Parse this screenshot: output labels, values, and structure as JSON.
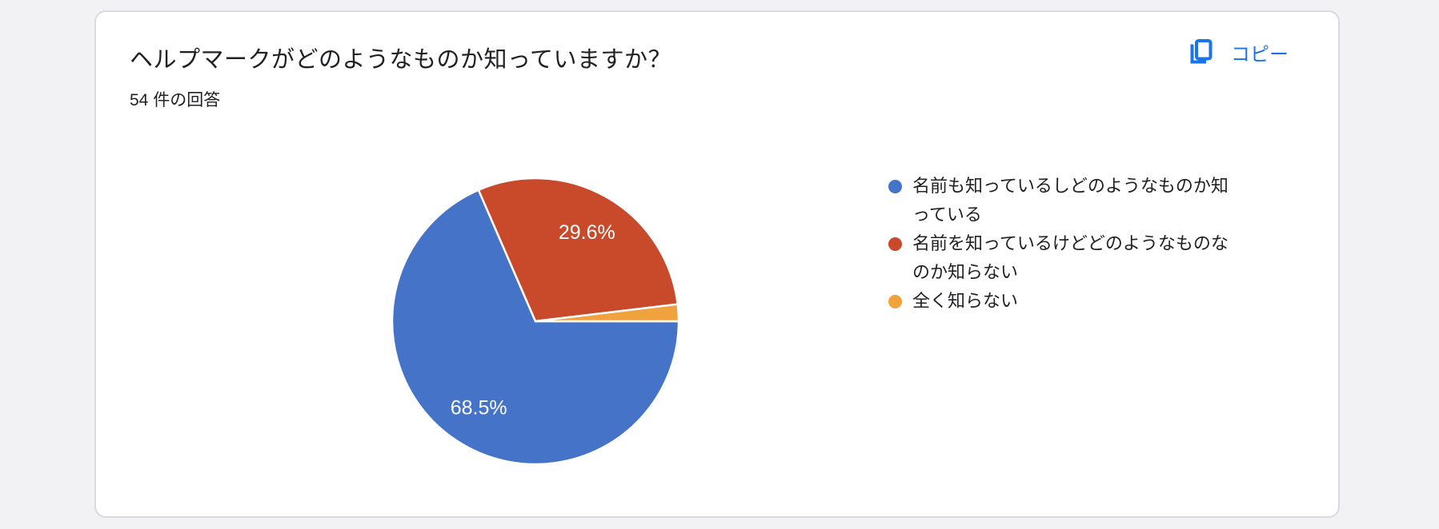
{
  "card": {
    "title": "ヘルプマークがどのようなものか知っていますか？",
    "response_count": "54 件の回答",
    "copy_label": "コピー"
  },
  "chart_data": {
    "type": "pie",
    "title": "ヘルプマークがどのようなものか知っていますか？",
    "responses_text": "54 件の回答",
    "total_responses": 54,
    "start_angle_deg": 0,
    "direction": "clockwise",
    "legend_position": "right",
    "slices": [
      {
        "label": "名前も知っているしどのようなものか知っている",
        "percent": 68.5,
        "data_label": "68.5%",
        "color": "#4573c8"
      },
      {
        "label": "名前を知っているけどどのようなものなのか知らない",
        "percent": 29.6,
        "data_label": "29.6%",
        "color": "#c9492b"
      },
      {
        "label": "全く知らない",
        "percent": 1.9,
        "data_label": "",
        "color": "#f0a23c"
      }
    ]
  },
  "colors": {
    "accent_link": "#1a73e8",
    "text": "#202124",
    "card_border": "#d8dade",
    "page_background": "#f2f2f4",
    "slice_stroke": "#ffffff"
  }
}
